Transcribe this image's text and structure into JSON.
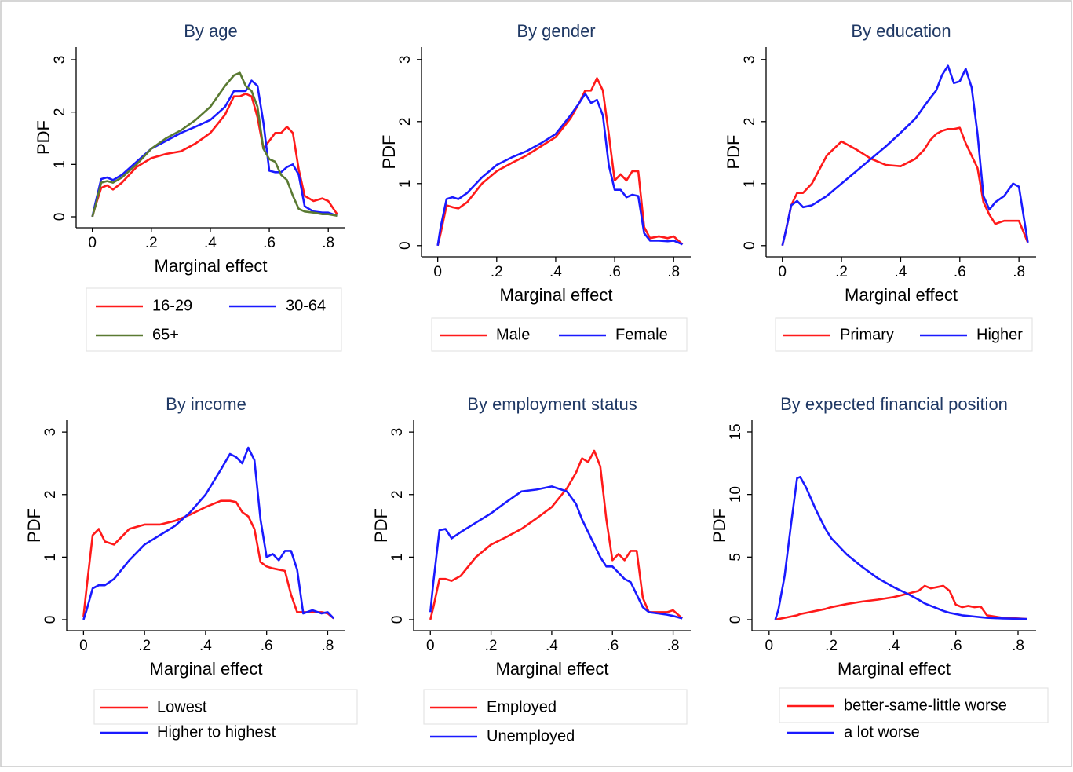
{
  "chart_data": [
    {
      "type": "line",
      "title": "By age",
      "xlabel": "Marginal effect",
      "ylabel": "PDF",
      "x": [
        0,
        0.01,
        0.03,
        0.05,
        0.07,
        0.1,
        0.15,
        0.2,
        0.25,
        0.3,
        0.35,
        0.4,
        0.45,
        0.48,
        0.5,
        0.52,
        0.54,
        0.56,
        0.58,
        0.6,
        0.62,
        0.64,
        0.66,
        0.68,
        0.7,
        0.72,
        0.75,
        0.78,
        0.8,
        0.83
      ],
      "series": [
        {
          "name": "16-29",
          "color": "#ff1a1a",
          "values": [
            0,
            0.2,
            0.55,
            0.6,
            0.52,
            0.65,
            0.95,
            1.12,
            1.2,
            1.25,
            1.4,
            1.6,
            1.95,
            2.3,
            2.3,
            2.35,
            2.3,
            1.9,
            1.3,
            1.45,
            1.6,
            1.6,
            1.72,
            1.6,
            0.9,
            0.4,
            0.3,
            0.35,
            0.3,
            0.05
          ]
        },
        {
          "name": "30-64",
          "color": "#1a1aff",
          "values": [
            0,
            0.25,
            0.72,
            0.75,
            0.7,
            0.8,
            1.05,
            1.3,
            1.45,
            1.6,
            1.72,
            1.85,
            2.1,
            2.4,
            2.4,
            2.4,
            2.6,
            2.5,
            1.8,
            0.88,
            0.85,
            0.85,
            0.95,
            1.0,
            0.8,
            0.2,
            0.1,
            0.08,
            0.08,
            0.02
          ]
        },
        {
          "name": "65+",
          "color": "#5a7a32",
          "values": [
            0,
            0.2,
            0.65,
            0.68,
            0.65,
            0.75,
            1.0,
            1.3,
            1.5,
            1.65,
            1.85,
            2.1,
            2.5,
            2.7,
            2.75,
            2.5,
            2.4,
            2.1,
            1.3,
            1.1,
            1.05,
            0.8,
            0.7,
            0.4,
            0.15,
            0.1,
            0.08,
            0.05,
            0.05,
            0.02
          ]
        }
      ],
      "xlim": [
        -0.055,
        0.858
      ],
      "ylim": [
        -0.21,
        3.24
      ],
      "xticks": [
        0,
        {
          "value": 0.2,
          "label": ".2"
        },
        {
          "value": 0.4,
          "label": ".4"
        },
        {
          "value": 0.6,
          "label": ".6"
        },
        {
          "value": 0.8,
          "label": ".8"
        }
      ],
      "yticks": [
        0,
        1,
        2,
        3
      ]
    },
    {
      "type": "line",
      "title": "By gender",
      "xlabel": "Marginal effect",
      "ylabel": "PDF",
      "x": [
        0,
        0.01,
        0.03,
        0.05,
        0.07,
        0.1,
        0.15,
        0.2,
        0.25,
        0.3,
        0.35,
        0.4,
        0.45,
        0.48,
        0.5,
        0.52,
        0.54,
        0.56,
        0.58,
        0.6,
        0.62,
        0.64,
        0.66,
        0.68,
        0.7,
        0.72,
        0.75,
        0.78,
        0.8,
        0.83
      ],
      "series": [
        {
          "name": "Male",
          "color": "#ff1a1a",
          "values": [
            0,
            0.2,
            0.65,
            0.62,
            0.6,
            0.7,
            1.0,
            1.2,
            1.33,
            1.45,
            1.6,
            1.75,
            2.05,
            2.3,
            2.5,
            2.5,
            2.7,
            2.5,
            1.8,
            1.05,
            1.15,
            1.05,
            1.2,
            1.2,
            0.3,
            0.12,
            0.15,
            0.12,
            0.15,
            0.02
          ]
        },
        {
          "name": "Female",
          "color": "#1a1aff",
          "values": [
            0,
            0.3,
            0.75,
            0.78,
            0.75,
            0.85,
            1.1,
            1.3,
            1.42,
            1.52,
            1.65,
            1.8,
            2.1,
            2.3,
            2.45,
            2.3,
            2.35,
            2.1,
            1.3,
            0.9,
            0.9,
            0.78,
            0.82,
            0.8,
            0.2,
            0.08,
            0.08,
            0.07,
            0.08,
            0.02
          ]
        }
      ],
      "xlim": [
        -0.055,
        0.858
      ],
      "ylim": [
        -0.18,
        3.2
      ],
      "xticks": [
        0,
        {
          "value": 0.2,
          "label": ".2"
        },
        {
          "value": 0.4,
          "label": ".4"
        },
        {
          "value": 0.6,
          "label": ".6"
        },
        {
          "value": 0.8,
          "label": ".8"
        }
      ],
      "yticks": [
        0,
        1,
        2,
        3
      ]
    },
    {
      "type": "line",
      "title": "By education",
      "xlabel": "Marginal effect",
      "ylabel": "PDF",
      "x": [
        0,
        0.01,
        0.03,
        0.05,
        0.07,
        0.1,
        0.15,
        0.2,
        0.25,
        0.3,
        0.35,
        0.4,
        0.45,
        0.48,
        0.5,
        0.52,
        0.54,
        0.56,
        0.58,
        0.6,
        0.62,
        0.64,
        0.66,
        0.68,
        0.7,
        0.72,
        0.75,
        0.78,
        0.8,
        0.83
      ],
      "series": [
        {
          "name": "Primary",
          "color": "#ff1a1a",
          "values": [
            0,
            0.2,
            0.65,
            0.85,
            0.85,
            1.0,
            1.45,
            1.68,
            1.55,
            1.4,
            1.3,
            1.28,
            1.4,
            1.55,
            1.7,
            1.8,
            1.85,
            1.88,
            1.88,
            1.9,
            1.65,
            1.45,
            1.25,
            0.7,
            0.5,
            0.35,
            0.4,
            0.4,
            0.4,
            0.05
          ]
        },
        {
          "name": "Higher",
          "color": "#1a1aff",
          "values": [
            0,
            0.2,
            0.65,
            0.72,
            0.62,
            0.65,
            0.8,
            1.0,
            1.2,
            1.4,
            1.6,
            1.82,
            2.05,
            2.25,
            2.38,
            2.5,
            2.75,
            2.9,
            2.62,
            2.65,
            2.85,
            2.55,
            1.8,
            0.8,
            0.58,
            0.7,
            0.8,
            1.0,
            0.95,
            0.05
          ]
        }
      ],
      "xlim": [
        -0.055,
        0.858
      ],
      "ylim": [
        -0.18,
        3.2
      ],
      "xticks": [
        0,
        {
          "value": 0.2,
          "label": ".2"
        },
        {
          "value": 0.4,
          "label": ".4"
        },
        {
          "value": 0.6,
          "label": ".6"
        },
        {
          "value": 0.8,
          "label": ".8"
        }
      ],
      "yticks": [
        0,
        1,
        2,
        3
      ]
    },
    {
      "type": "line",
      "title": "By income",
      "xlabel": "Marginal effect",
      "ylabel": "PDF",
      "x": [
        0,
        0.01,
        0.03,
        0.05,
        0.07,
        0.1,
        0.15,
        0.2,
        0.25,
        0.3,
        0.35,
        0.4,
        0.45,
        0.48,
        0.5,
        0.52,
        0.54,
        0.56,
        0.58,
        0.6,
        0.62,
        0.64,
        0.66,
        0.68,
        0.7,
        0.72,
        0.75,
        0.78,
        0.8,
        0.82
      ],
      "series": [
        {
          "name": "Lowest",
          "color": "#ff1a1a",
          "values": [
            0.05,
            0.5,
            1.35,
            1.45,
            1.25,
            1.2,
            1.45,
            1.52,
            1.52,
            1.58,
            1.68,
            1.8,
            1.9,
            1.9,
            1.88,
            1.72,
            1.65,
            1.45,
            0.92,
            0.85,
            0.82,
            0.8,
            0.78,
            0.4,
            0.12,
            0.12,
            0.12,
            0.12,
            0.1,
            0.02
          ]
        },
        {
          "name": "Higher to highest",
          "color": "#1a1aff",
          "values": [
            0,
            0.15,
            0.5,
            0.55,
            0.55,
            0.65,
            0.95,
            1.2,
            1.35,
            1.5,
            1.72,
            2.0,
            2.4,
            2.65,
            2.6,
            2.5,
            2.75,
            2.55,
            1.6,
            1.0,
            1.05,
            0.95,
            1.1,
            1.1,
            0.8,
            0.1,
            0.15,
            0.1,
            0.12,
            0.02
          ]
        }
      ],
      "xlim": [
        -0.055,
        0.858
      ],
      "ylim": [
        -0.176,
        3.19
      ],
      "xticks": [
        0,
        {
          "value": 0.2,
          "label": ".2"
        },
        {
          "value": 0.4,
          "label": ".4"
        },
        {
          "value": 0.6,
          "label": ".6"
        },
        {
          "value": 0.8,
          "label": ".8"
        }
      ],
      "yticks": [
        0,
        1,
        2,
        3
      ]
    },
    {
      "type": "line",
      "title": "By employment status",
      "xlabel": "Marginal effect",
      "ylabel": "PDF",
      "x": [
        0,
        0.01,
        0.03,
        0.05,
        0.07,
        0.1,
        0.15,
        0.2,
        0.25,
        0.3,
        0.35,
        0.4,
        0.45,
        0.48,
        0.5,
        0.52,
        0.54,
        0.56,
        0.58,
        0.6,
        0.62,
        0.64,
        0.66,
        0.68,
        0.7,
        0.72,
        0.75,
        0.78,
        0.8,
        0.83
      ],
      "series": [
        {
          "name": "Employed",
          "color": "#ff1a1a",
          "values": [
            0,
            0.2,
            0.65,
            0.65,
            0.62,
            0.7,
            1.0,
            1.2,
            1.32,
            1.45,
            1.62,
            1.8,
            2.1,
            2.35,
            2.58,
            2.52,
            2.7,
            2.45,
            1.6,
            0.95,
            1.05,
            0.95,
            1.1,
            1.1,
            0.35,
            0.12,
            0.12,
            0.12,
            0.15,
            0.02
          ]
        },
        {
          "name": "Unemployed",
          "color": "#1a1aff",
          "values": [
            0.12,
            0.6,
            1.43,
            1.45,
            1.3,
            1.4,
            1.55,
            1.7,
            1.88,
            2.05,
            2.08,
            2.13,
            2.05,
            1.85,
            1.6,
            1.4,
            1.2,
            1.0,
            0.85,
            0.85,
            0.75,
            0.65,
            0.6,
            0.4,
            0.2,
            0.12,
            0.1,
            0.08,
            0.06,
            0.02
          ]
        }
      ],
      "xlim": [
        -0.055,
        0.858
      ],
      "ylim": [
        -0.176,
        3.19
      ],
      "xticks": [
        0,
        {
          "value": 0.2,
          "label": ".2"
        },
        {
          "value": 0.4,
          "label": ".4"
        },
        {
          "value": 0.6,
          "label": ".6"
        },
        {
          "value": 0.8,
          "label": ".8"
        }
      ],
      "yticks": [
        0,
        1,
        2,
        3
      ]
    },
    {
      "type": "line",
      "title": "By expected financial position",
      "xlabel": "Marginal effect",
      "ylabel": "PDF",
      "x": [
        0.02,
        0.03,
        0.05,
        0.07,
        0.09,
        0.1,
        0.12,
        0.15,
        0.18,
        0.2,
        0.25,
        0.3,
        0.35,
        0.4,
        0.45,
        0.48,
        0.5,
        0.52,
        0.54,
        0.56,
        0.58,
        0.6,
        0.62,
        0.64,
        0.66,
        0.68,
        0.7,
        0.75,
        0.8,
        0.83
      ],
      "series": [
        {
          "name": "better-same-little worse",
          "color": "#ff1a1a",
          "values": [
            0,
            0.05,
            0.15,
            0.25,
            0.35,
            0.45,
            0.55,
            0.7,
            0.85,
            1.0,
            1.25,
            1.45,
            1.6,
            1.8,
            2.1,
            2.3,
            2.7,
            2.5,
            2.6,
            2.7,
            2.3,
            1.2,
            1.0,
            1.1,
            1.0,
            1.05,
            0.35,
            0.15,
            0.1,
            0.05
          ]
        },
        {
          "name": "a lot worse",
          "color": "#1a1aff",
          "values": [
            0,
            0.8,
            3.5,
            7.5,
            11.3,
            11.4,
            10.5,
            8.8,
            7.3,
            6.5,
            5.2,
            4.2,
            3.3,
            2.6,
            2.0,
            1.6,
            1.3,
            1.1,
            0.9,
            0.7,
            0.55,
            0.45,
            0.35,
            0.3,
            0.25,
            0.2,
            0.15,
            0.1,
            0.07,
            0.05
          ]
        }
      ],
      "xlim": [
        -0.055,
        0.858
      ],
      "ylim": [
        -0.88,
        15.94
      ],
      "xticks": [
        0,
        {
          "value": 0.2,
          "label": ".2"
        },
        {
          "value": 0.4,
          "label": ".4"
        },
        {
          "value": 0.6,
          "label": ".6"
        },
        {
          "value": 0.8,
          "label": ".8"
        }
      ],
      "yticks": [
        0,
        5,
        10,
        15
      ]
    }
  ]
}
